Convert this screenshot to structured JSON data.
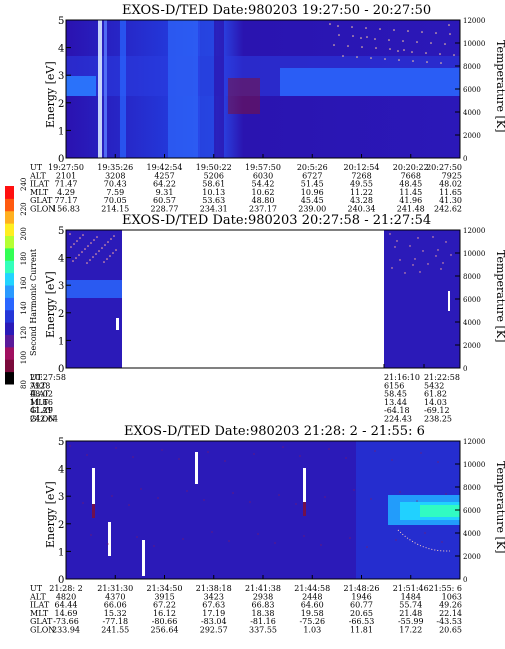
{
  "chart_data": [
    {
      "type": "heatmap",
      "title": "EXOS-D/TED   Date:980203   19:27:50 - 20:27:50",
      "ylabel": "Energy [eV]",
      "y2label": "Temperature [K]",
      "ylim": [
        0,
        5
      ],
      "yticks": [
        "0",
        "1",
        "2",
        "3",
        "4",
        "5"
      ],
      "y2lim": [
        0,
        12000
      ],
      "y2ticks": [
        "0",
        "2000",
        "4000",
        "6000",
        "8000",
        "10000",
        "12000"
      ],
      "rows": [
        "UT",
        "ALT",
        "ILAT",
        "MLT",
        "GLAT",
        "GLON"
      ],
      "columns": [
        [
          "19:27:50",
          "2101",
          "71.47",
          "4.29",
          "77.17",
          "156.83"
        ],
        [
          "19:35:26",
          "3208",
          "70.43",
          "7.59",
          "70.05",
          "214.15"
        ],
        [
          "19:42:54",
          "4257",
          "64.22",
          "9.31",
          "60.57",
          "228.77"
        ],
        [
          "19:50:22",
          "5206",
          "58.61",
          "10.13",
          "53.63",
          "234.31"
        ],
        [
          "19:57:50",
          "6030",
          "54.42",
          "10.62",
          "48.80",
          "237.17"
        ],
        [
          "20:5:26",
          "6727",
          "51.45",
          "10.96",
          "45.45",
          "239.00"
        ],
        [
          "20:12:54",
          "7268",
          "49.55",
          "11.22",
          "43.28",
          "240.34"
        ],
        [
          "20:20:22",
          "7668",
          "48.45",
          "11.45",
          "41.96",
          "241.48"
        ],
        [
          "20:27:50",
          "7925",
          "48.02",
          "11.65",
          "41.30",
          "242.62"
        ]
      ]
    },
    {
      "type": "heatmap",
      "title": "EXOS-D/TED   Date:980203   20:27:58 - 21:27:54",
      "ylabel": "Energy [eV]",
      "y2label": "Temperature [K]",
      "colorbar_label": "Second Harmonic Current",
      "colorbar_ticks": [
        "80",
        "100",
        "120",
        "140",
        "160",
        "180",
        "200",
        "220",
        "240"
      ],
      "ylim": [
        0,
        5
      ],
      "yticks": [
        "0",
        "1",
        "2",
        "3",
        "4",
        "5"
      ],
      "y2lim": [
        0,
        12000
      ],
      "y2ticks": [
        "0",
        "2000",
        "4000",
        "6000",
        "8000",
        "10000",
        "12000"
      ],
      "rows": [
        "UT",
        "ALT",
        "ILAT",
        "MLT",
        "GLAT",
        "GLON"
      ],
      "columns": [
        [
          "20:27:58",
          "7928",
          "48.02",
          "11.66",
          "41.29",
          "242.64"
        ],
        [
          "21:16:10",
          "6156",
          "58.45",
          "13.44",
          "-64.18",
          "224.43"
        ],
        [
          "21:22:58",
          "5432",
          "61.82",
          "14.03",
          "-69.12",
          "238.25"
        ]
      ]
    },
    {
      "type": "heatmap",
      "title": "EXOS-D/TED   Date:980203   21:28: 2 - 21:55: 6",
      "ylabel": "Energy [eV]",
      "y2label": "Temperature [K]",
      "ylim": [
        0,
        5
      ],
      "yticks": [
        "0",
        "1",
        "2",
        "3",
        "4",
        "5"
      ],
      "y2lim": [
        0,
        12000
      ],
      "y2ticks": [
        "0",
        "2000",
        "4000",
        "6000",
        "8000",
        "10000",
        "12000"
      ],
      "rows": [
        "UT",
        "ALT",
        "ILAT",
        "MLT",
        "GLAT",
        "GLON"
      ],
      "columns": [
        [
          "21:28: 2",
          "4820",
          "64.44",
          "14.69",
          "-73.66",
          "233.94"
        ],
        [
          "21:31:30",
          "4370",
          "66.06",
          "15.32",
          "-77.18",
          "241.55"
        ],
        [
          "21:34:50",
          "3915",
          "67.22",
          "16.12",
          "-80.66",
          "256.64"
        ],
        [
          "21:38:18",
          "3423",
          "67.63",
          "17.19",
          "-83.04",
          "292.57"
        ],
        [
          "21:41:38",
          "2938",
          "66.83",
          "18.38",
          "-81.16",
          "337.55"
        ],
        [
          "21:44:58",
          "2448",
          "64.60",
          "19.58",
          "-75.26",
          "1.03"
        ],
        [
          "21:48:26",
          "1946",
          "60.77",
          "20.65",
          "-66.53",
          "11.81"
        ],
        [
          "21:51:46",
          "1484",
          "55.74",
          "21.48",
          "-55.99",
          "17.22"
        ],
        [
          "21:55: 6",
          "1063",
          "49.26",
          "22.14",
          "-43.53",
          "20.65"
        ]
      ]
    }
  ],
  "colors": {
    "bg_deep": "#2a10a8",
    "bg_blue": "#2b2fe0",
    "band_blue": "#2e66ff",
    "band_cyan": "#22d4ff",
    "band_green": "#33ffbb",
    "maroon": "#7a1040"
  }
}
